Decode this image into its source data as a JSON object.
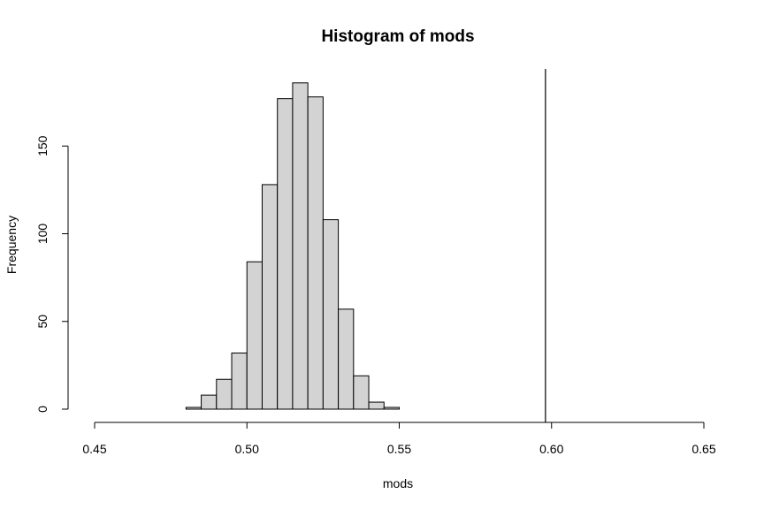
{
  "chart_data": {
    "type": "bar",
    "title": "Histogram of mods",
    "xlabel": "mods",
    "ylabel": "Frequency",
    "xlim": [
      0.45,
      0.65
    ],
    "ylim": [
      0,
      190
    ],
    "x_ticks": [
      0.45,
      0.5,
      0.55,
      0.6,
      0.65
    ],
    "x_tick_labels": [
      "0.45",
      "0.50",
      "0.55",
      "0.60",
      "0.65"
    ],
    "y_ticks": [
      0,
      50,
      100,
      150
    ],
    "y_tick_labels": [
      "0",
      "50",
      "100",
      "150"
    ],
    "bin_edges": [
      0.48,
      0.485,
      0.49,
      0.495,
      0.5,
      0.505,
      0.51,
      0.515,
      0.52,
      0.525,
      0.53,
      0.535,
      0.54,
      0.545,
      0.55
    ],
    "values": [
      1,
      8,
      17,
      32,
      84,
      128,
      177,
      186,
      178,
      108,
      57,
      19,
      4,
      1
    ],
    "reference_line_x": 0.598,
    "grid": false,
    "bar_color": "#d3d3d3"
  }
}
